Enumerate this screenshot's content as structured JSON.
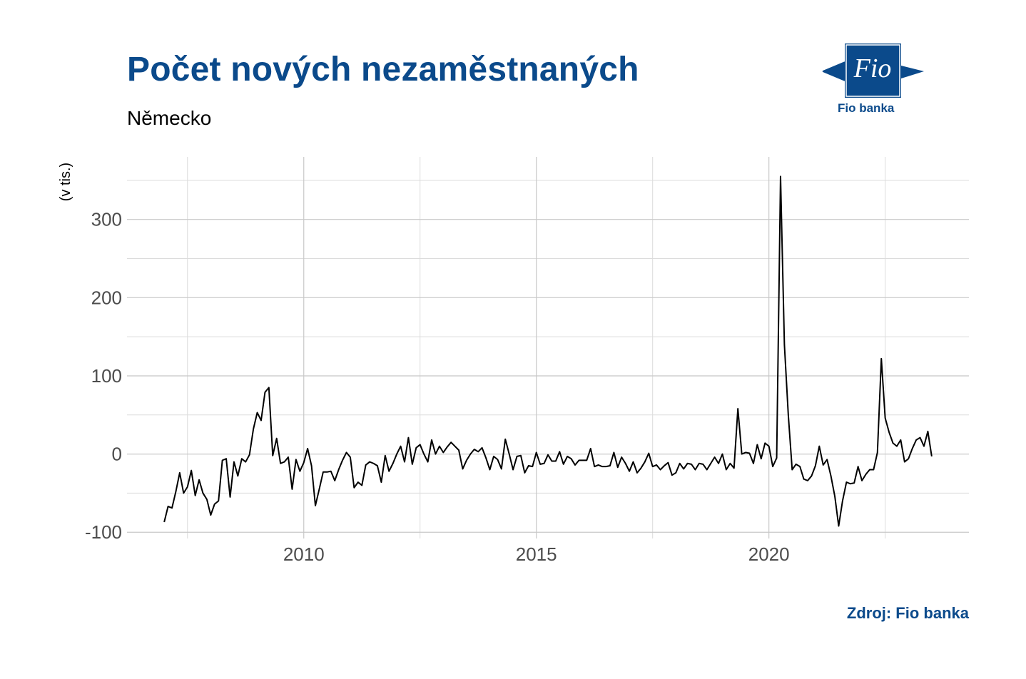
{
  "header": {
    "title": "Počet nových nezaměstnaných",
    "subtitle": "Německo"
  },
  "logo": {
    "mark_text": "Fio",
    "name": "Fio banka",
    "icon": "fio-flag-logo",
    "color": "#0b4a8b"
  },
  "footer": {
    "source": "Zdroj: Fio banka"
  },
  "chart_data": {
    "type": "line",
    "title": "Počet nových nezaměstnaných",
    "subtitle": "Německo",
    "xlabel": "",
    "ylabel": "(v tis.)",
    "ylim": [
      -108,
      380
    ],
    "xlim": [
      2006.2,
      2024.3
    ],
    "yticks": [
      -100,
      0,
      100,
      200,
      300
    ],
    "ytick_labels": [
      "-100",
      "0",
      "100",
      "200",
      "300"
    ],
    "xticks": [
      2010,
      2015,
      2020
    ],
    "xtick_labels": [
      "2010",
      "2015",
      "2020"
    ],
    "grid": true,
    "line_color": "#000000",
    "series": [
      {
        "x": [
          2007.0,
          2007.083,
          2007.167,
          2007.25,
          2007.333,
          2007.417,
          2007.5,
          2007.583,
          2007.667,
          2007.75,
          2007.833,
          2007.917,
          2008.0,
          2008.083,
          2008.167,
          2008.25,
          2008.333,
          2008.417,
          2008.5,
          2008.583,
          2008.667,
          2008.75,
          2008.833,
          2008.917,
          2009.0,
          2009.083,
          2009.167,
          2009.25,
          2009.333,
          2009.417,
          2009.5,
          2009.583,
          2009.667,
          2009.75,
          2009.833,
          2009.917,
          2010.0,
          2010.083,
          2010.167,
          2010.25,
          2010.333,
          2010.417,
          2010.5,
          2010.583,
          2010.667,
          2010.75,
          2010.833,
          2010.917,
          2011.0,
          2011.083,
          2011.167,
          2011.25,
          2011.333,
          2011.417,
          2011.5,
          2011.583,
          2011.667,
          2011.75,
          2011.833,
          2011.917,
          2012.0,
          2012.083,
          2012.167,
          2012.25,
          2012.333,
          2012.417,
          2012.5,
          2012.583,
          2012.667,
          2012.75,
          2012.833,
          2012.917,
          2013.0,
          2013.083,
          2013.167,
          2013.25,
          2013.333,
          2013.417,
          2013.5,
          2013.583,
          2013.667,
          2013.75,
          2013.833,
          2013.917,
          2014.0,
          2014.083,
          2014.167,
          2014.25,
          2014.333,
          2014.417,
          2014.5,
          2014.583,
          2014.667,
          2014.75,
          2014.833,
          2014.917,
          2015.0,
          2015.083,
          2015.167,
          2015.25,
          2015.333,
          2015.417,
          2015.5,
          2015.583,
          2015.667,
          2015.75,
          2015.833,
          2015.917,
          2016.0,
          2016.083,
          2016.167,
          2016.25,
          2016.333,
          2016.417,
          2016.5,
          2016.583,
          2016.667,
          2016.75,
          2016.833,
          2016.917,
          2017.0,
          2017.083,
          2017.167,
          2017.25,
          2017.333,
          2017.417,
          2017.5,
          2017.583,
          2017.667,
          2017.75,
          2017.833,
          2017.917,
          2018.0,
          2018.083,
          2018.167,
          2018.25,
          2018.333,
          2018.417,
          2018.5,
          2018.583,
          2018.667,
          2018.75,
          2018.833,
          2018.917,
          2019.0,
          2019.083,
          2019.167,
          2019.25,
          2019.333,
          2019.417,
          2019.5,
          2019.583,
          2019.667,
          2019.75,
          2019.833,
          2019.917,
          2020.0,
          2020.083,
          2020.167,
          2020.25,
          2020.333,
          2020.417,
          2020.5,
          2020.583,
          2020.667,
          2020.75,
          2020.833,
          2020.917,
          2021.0,
          2021.083,
          2021.167,
          2021.25,
          2021.333,
          2021.417,
          2021.5,
          2021.583,
          2021.667,
          2021.75,
          2021.833,
          2021.917,
          2022.0,
          2022.083,
          2022.167,
          2022.25,
          2022.333,
          2022.417,
          2022.5,
          2022.583,
          2022.667,
          2022.75,
          2022.833,
          2022.917,
          2023.0,
          2023.083,
          2023.167,
          2023.25,
          2023.333,
          2023.417,
          2023.5
        ],
        "values": [
          -87,
          -67,
          -69,
          -48,
          -24,
          -50,
          -42,
          -21,
          -53,
          -33,
          -50,
          -58,
          -78,
          -64,
          -60,
          -8,
          -6,
          -55,
          -10,
          -28,
          -6,
          -10,
          -1,
          32,
          53,
          43,
          79,
          85,
          -2,
          20,
          -12,
          -10,
          -4,
          -45,
          -7,
          -22,
          -11,
          7,
          -15,
          -66,
          -45,
          -23,
          -23,
          -22,
          -34,
          -20,
          -8,
          2,
          -4,
          -43,
          -36,
          -40,
          -14,
          -10,
          -12,
          -15,
          -36,
          -2,
          -22,
          -12,
          0,
          10,
          -10,
          21,
          -13,
          8,
          12,
          0,
          -10,
          18,
          0,
          10,
          2,
          9,
          15,
          10,
          5,
          -19,
          -8,
          0,
          6,
          3,
          8,
          -5,
          -20,
          -3,
          -7,
          -19,
          19,
          0,
          -20,
          -3,
          -2,
          -24,
          -15,
          -16,
          2,
          -13,
          -12,
          -1,
          -9,
          -9,
          3,
          -13,
          -3,
          -6,
          -14,
          -8,
          -8,
          -8,
          7,
          -16,
          -14,
          -16,
          -16,
          -15,
          2,
          -17,
          -4,
          -12,
          -22,
          -10,
          -24,
          -18,
          -10,
          1,
          -16,
          -14,
          -20,
          -15,
          -11,
          -27,
          -24,
          -12,
          -19,
          -12,
          -13,
          -20,
          -12,
          -13,
          -20,
          -12,
          -4,
          -12,
          0,
          -20,
          -12,
          -18,
          58,
          0,
          2,
          1,
          -12,
          12,
          -6,
          14,
          10,
          -16,
          -5,
          355,
          140,
          50,
          -20,
          -13,
          -16,
          -32,
          -34,
          -28,
          -15,
          10,
          -14,
          -7,
          -28,
          -54,
          -92,
          -60,
          -36,
          -38,
          -37,
          -16,
          -34,
          -26,
          -20,
          -20,
          2,
          122,
          46,
          28,
          14,
          10,
          18,
          -10,
          -6,
          7,
          18,
          21,
          10,
          29,
          -3
        ]
      }
    ]
  }
}
